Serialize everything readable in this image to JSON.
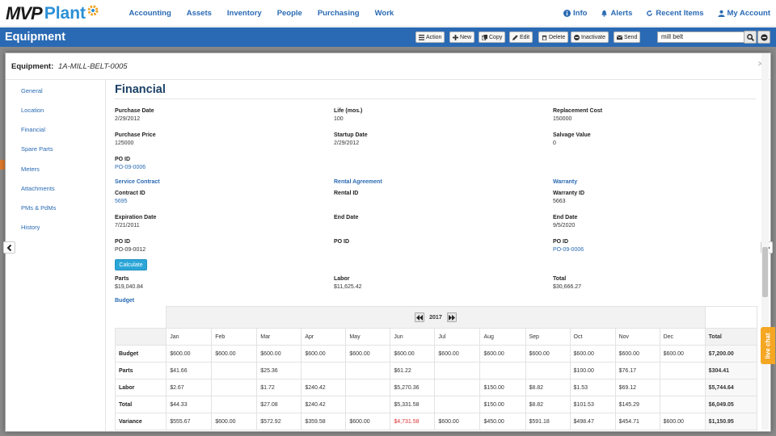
{
  "brand": {
    "logo_left": "MVP",
    "logo_right": "Plant"
  },
  "nav": {
    "items": [
      "Accounting",
      "Assets",
      "Inventory",
      "People",
      "Purchasing",
      "Work"
    ],
    "right": [
      {
        "icon": "info-icon",
        "label": "Info"
      },
      {
        "icon": "bell-icon",
        "label": "Alerts"
      },
      {
        "icon": "refresh-icon",
        "label": "Recent Items"
      },
      {
        "icon": "user-icon",
        "label": "My Account"
      }
    ]
  },
  "header": {
    "title": "Equipment"
  },
  "toolbar": {
    "action": "Action",
    "new": "New",
    "copy": "Copy",
    "edit": "Edit",
    "delete": "Delete",
    "inactivate": "Inactivate",
    "send": "Send"
  },
  "search": {
    "value": "mill belt"
  },
  "modal": {
    "label": "Equipment",
    "equipment_id": "1A-MILL-BELT-0005",
    "close": "×"
  },
  "sidebar": {
    "items": [
      "General",
      "Location",
      "Financial",
      "Spare Parts",
      "Meters",
      "Attachments",
      "PMs & PdMs",
      "History"
    ]
  },
  "financial": {
    "title": "Financial",
    "purchase_date": {
      "label": "Purchase Date",
      "value": "2/29/2012"
    },
    "life": {
      "label": "Life (mos.)",
      "value": "100"
    },
    "replacement_cost": {
      "label": "Replacement Cost",
      "value": "150000"
    },
    "purchase_price": {
      "label": "Purchase Price",
      "value": "125000"
    },
    "startup_date": {
      "label": "Startup Date",
      "value": "2/29/2012"
    },
    "salvage_value": {
      "label": "Salvage Value",
      "value": "0"
    },
    "po_id": {
      "label": "PO ID",
      "value": "PO-09-0006"
    },
    "service_contract": {
      "title": "Service Contract",
      "contract_id_label": "Contract ID",
      "contract_id": "5695",
      "expiration_label": "Expiration Date",
      "expiration": "7/21/2011",
      "po_label": "PO ID",
      "po": "PO-09-0012"
    },
    "rental": {
      "title": "Rental Agreement",
      "rental_id_label": "Rental ID",
      "end_label": "End Date",
      "po_label": "PO ID"
    },
    "warranty": {
      "title": "Warranty",
      "warranty_id_label": "Warranty ID",
      "warranty_id": "5663",
      "end_label": "End Date",
      "end": "9/5/2020",
      "po_label": "PO ID",
      "po": "PO-09-0006"
    },
    "calculate": "Calculate",
    "parts": {
      "label": "Parts",
      "value": "$19,040.84"
    },
    "labor": {
      "label": "Labor",
      "value": "$11,625.42"
    },
    "total": {
      "label": "Total",
      "value": "$30,666.27"
    }
  },
  "budget": {
    "title": "Budget",
    "year": "2017",
    "months": [
      "Jan",
      "Feb",
      "Mar",
      "Apr",
      "May",
      "Jun",
      "Jul",
      "Aug",
      "Sep",
      "Oct",
      "Nov",
      "Dec",
      "Total"
    ],
    "rows": [
      {
        "label": "Budget",
        "cells": [
          "$600.00",
          "$600.00",
          "$600.00",
          "$600.00",
          "$600.00",
          "$600.00",
          "$600.00",
          "$600.00",
          "$600.00",
          "$600.00",
          "$600.00",
          "$600.00"
        ],
        "total": "$7,200.00"
      },
      {
        "label": "Parts",
        "cells": [
          "$41.66",
          "",
          "$25.36",
          "",
          "",
          "$61.22",
          "",
          "",
          "",
          "$100.00",
          "$76.17",
          ""
        ],
        "total": "$304.41"
      },
      {
        "label": "Labor",
        "cells": [
          "$2.67",
          "",
          "$1.72",
          "$240.42",
          "",
          "$5,270.36",
          "",
          "$150.00",
          "$8.82",
          "$1.53",
          "$69.12",
          ""
        ],
        "total": "$5,744.64"
      },
      {
        "label": "Total",
        "cells": [
          "$44.33",
          "",
          "$27.08",
          "$240.42",
          "",
          "$5,331.58",
          "",
          "$150.00",
          "$8.82",
          "$101.53",
          "$145.29",
          ""
        ],
        "total": "$6,049.05"
      },
      {
        "label": "Variance",
        "cells": [
          "$555.67",
          "$600.00",
          "$572.92",
          "$359.58",
          "$600.00",
          "$4,731.58",
          "$600.00",
          "$450.00",
          "$591.18",
          "$498.47",
          "$454.71",
          "$600.00"
        ],
        "total": "$1,150.95",
        "negative_index": 5
      }
    ]
  },
  "livechat": "live chat",
  "colors": {
    "brand_blue": "#2a6ab4",
    "header_bar": "#2a6ab4",
    "calc_button": "#2ba6d8",
    "negative": "#e03030",
    "livechat": "#f5a623"
  }
}
